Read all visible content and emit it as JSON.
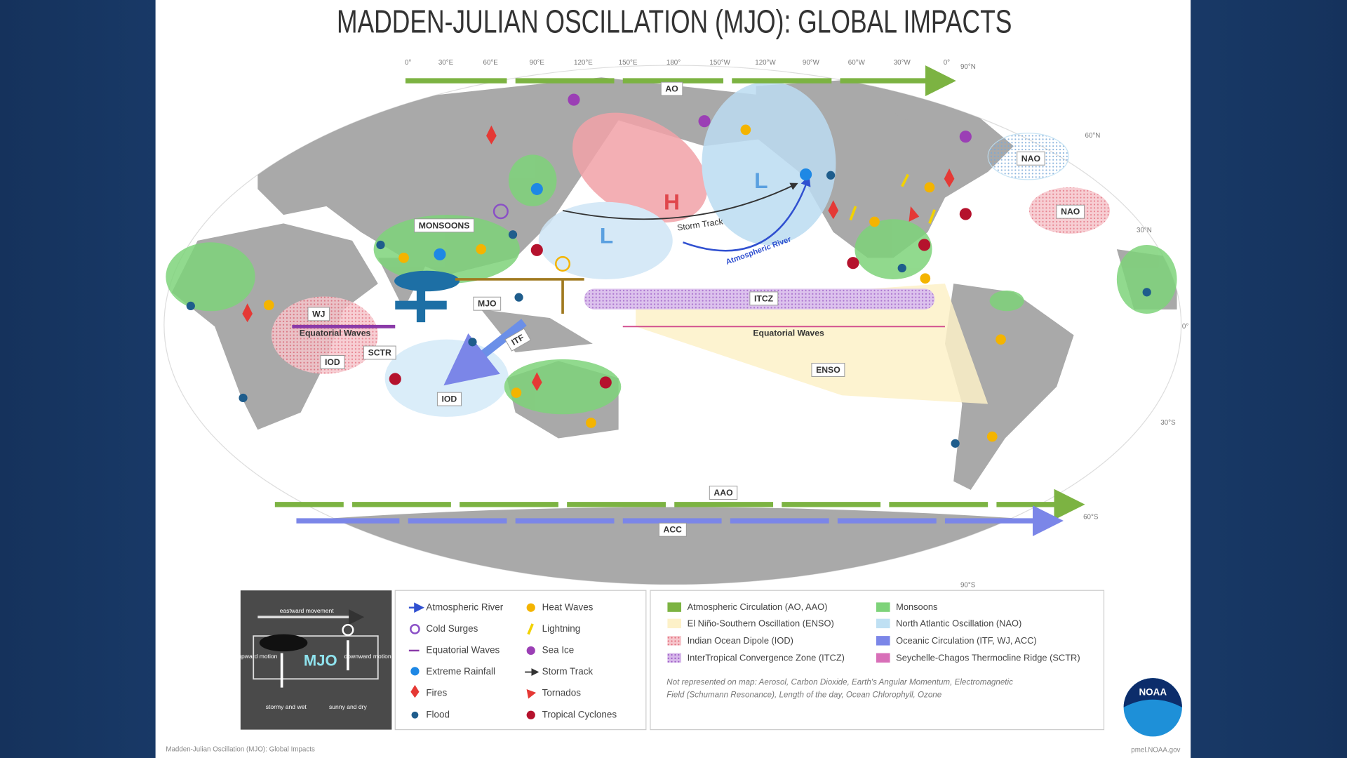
{
  "title": "MADDEN-JULIAN OSCILLATION (MJO): GLOBAL IMPACTS",
  "map": {
    "longitudes": [
      "0°",
      "30°E",
      "60°E",
      "90°E",
      "120°E",
      "150°E",
      "180°",
      "150°W",
      "120°W",
      "90°W",
      "60°W",
      "30°W",
      "0°"
    ],
    "latitudes": [
      "90°N",
      "60°N",
      "30°N",
      "0°",
      "30°S",
      "60°S",
      "90°S"
    ],
    "regions": [
      "AO",
      "NAO",
      "NAO",
      "MONSOONS",
      "MJO",
      "WJ",
      "SCTR",
      "IOD",
      "IOD",
      "ITF",
      "ITCZ",
      "ENSO",
      "AAO",
      "ACC"
    ],
    "annotations": [
      "H",
      "L",
      "L",
      "Storm Track",
      "Atmospheric River",
      "Equatorial Waves",
      "Equatorial Waves"
    ]
  },
  "diagram": [
    "eastward movement",
    "upward motion",
    "MJO",
    "downward motion",
    "stormy and wet",
    "sunny and dry"
  ],
  "impacts": [
    "Atmospheric River",
    "Cold Surges",
    "Equatorial Waves",
    "Extreme Rainfall",
    "Fires",
    "Flood",
    "Heat Waves",
    "Lightning",
    "Sea Ice",
    "Storm Track",
    "Tornados",
    "Tropical Cyclones"
  ],
  "phenomena": [
    "Atmospheric Circulation (AO, AAO)",
    "El Niño-Southern Oscillation (ENSO)",
    "Indian Ocean Dipole (IOD)",
    "InterTropical Convergence Zone (ITCZ)",
    "Monsoons",
    "North Atlantic Oscillation (NAO)",
    "Oceanic Circulation (ITF, WJ, ACC)",
    "Seychelle-Chagos Thermocline Ridge (SCTR)"
  ],
  "note": [
    "Not represented on map: Aerosol, Carbon Dioxide, Earth's Angular Momentum, Electromagnetic",
    "Field (Schumann Resonance), Length of the day, Ocean Chlorophyll, Ozone"
  ],
  "logo": "NOAA",
  "footer": {
    "caption": "Madden-Julian Oscillation (MJO): Global Impacts",
    "url": "pmel.NOAA.gov"
  }
}
